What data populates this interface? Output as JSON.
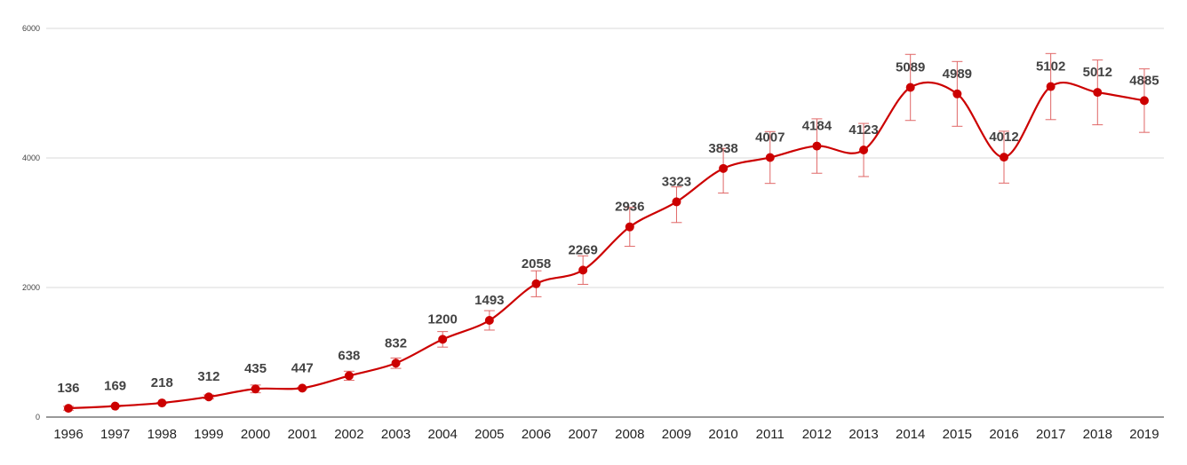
{
  "chart_data": {
    "type": "line",
    "title": "",
    "xlabel": "",
    "ylabel": "",
    "x": [
      "1996",
      "1997",
      "1998",
      "1999",
      "2000",
      "2001",
      "2002",
      "2003",
      "2004",
      "2005",
      "2006",
      "2007",
      "2008",
      "2009",
      "2010",
      "2011",
      "2012",
      "2013",
      "2014",
      "2015",
      "2016",
      "2017",
      "2018",
      "2019"
    ],
    "series": [
      {
        "values": [
          136,
          169,
          218,
          312,
          435,
          447,
          638,
          832,
          1200,
          1493,
          2058,
          2269,
          2936,
          3323,
          3838,
          4007,
          4184,
          4123,
          5089,
          4989,
          4012,
          5102,
          5012,
          4885
        ],
        "error_high": [
          166,
          179,
          228,
          342,
          495,
          457,
          708,
          912,
          1320,
          1643,
          2258,
          2489,
          3236,
          3553,
          4148,
          4407,
          4604,
          4533,
          5599,
          5489,
          4412,
          5612,
          5512,
          5375
        ],
        "error_low": [
          106,
          159,
          208,
          282,
          375,
          437,
          568,
          752,
          1080,
          1343,
          1858,
          2049,
          2636,
          3003,
          3458,
          3607,
          3764,
          3713,
          4579,
          4489,
          3612,
          4592,
          4512,
          4395
        ]
      }
    ],
    "data_labels": [
      "136",
      "169",
      "218",
      "312",
      "435",
      "447",
      "638",
      "832",
      "1200",
      "1493",
      "2058",
      "2269",
      "2936",
      "3323",
      "3838",
      "4007",
      "4184",
      "4123",
      "5089",
      "4989",
      "4012",
      "5102",
      "5012",
      "4885"
    ],
    "y_ticks": [
      "0",
      "2000",
      "4000",
      "6000"
    ],
    "ylim": [
      0,
      6000
    ],
    "grid": true,
    "legend": "none",
    "colors": {
      "line": "#cc0000",
      "marker": "#cc0000",
      "error_bar": "#e06666",
      "grid": "#d9d9d9",
      "axis": "#333333",
      "label": "#434343"
    }
  }
}
